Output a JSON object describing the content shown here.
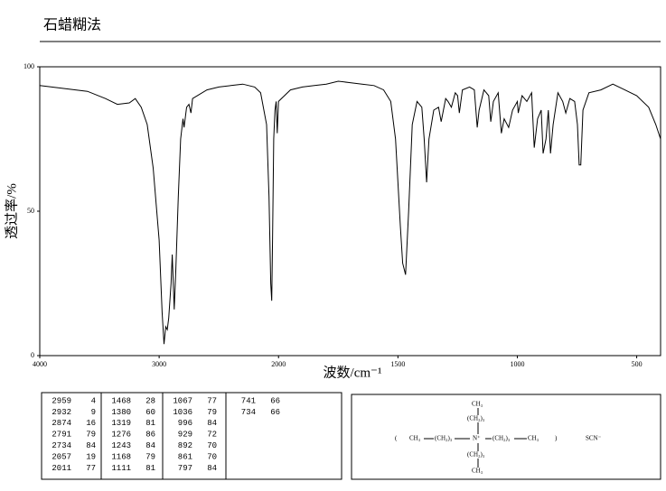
{
  "chart_data": {
    "type": "line",
    "title": "石蜡糊法",
    "xlabel": "波数/cm⁻¹",
    "ylabel": "透过率/%",
    "xlim": [
      4000,
      400
    ],
    "x_scale_break": 2000,
    "xticks": [
      4000,
      3000,
      2000,
      1500,
      1000,
      500
    ],
    "ylim": [
      0,
      100
    ],
    "yticks": [
      0,
      50,
      100
    ],
    "color": "#000000",
    "x": [
      4000,
      3800,
      3600,
      3450,
      3350,
      3250,
      3200,
      3150,
      3100,
      3050,
      3000,
      2975,
      2959,
      2945,
      2932,
      2920,
      2900,
      2890,
      2874,
      2860,
      2840,
      2820,
      2800,
      2791,
      2770,
      2750,
      2734,
      2720,
      2600,
      2500,
      2400,
      2300,
      2200,
      2150,
      2100,
      2080,
      2065,
      2057,
      2050,
      2040,
      2030,
      2020,
      2011,
      2000,
      1950,
      1900,
      1850,
      1800,
      1750,
      1700,
      1650,
      1600,
      1560,
      1530,
      1510,
      1490,
      1480,
      1468,
      1455,
      1440,
      1420,
      1400,
      1390,
      1380,
      1370,
      1350,
      1330,
      1319,
      1300,
      1290,
      1276,
      1260,
      1250,
      1243,
      1230,
      1200,
      1180,
      1168,
      1160,
      1140,
      1120,
      1111,
      1100,
      1080,
      1067,
      1055,
      1036,
      1020,
      1000,
      996,
      980,
      960,
      940,
      929,
      915,
      900,
      892,
      880,
      870,
      861,
      850,
      830,
      810,
      797,
      780,
      760,
      748,
      741,
      734,
      725,
      700,
      650,
      600,
      550,
      500,
      450,
      420,
      400
    ],
    "values": [
      93.5,
      92.5,
      91.5,
      89,
      87,
      87.5,
      89,
      86,
      80,
      65,
      40,
      15,
      4,
      10,
      9,
      13,
      25,
      35,
      16,
      30,
      55,
      75,
      82,
      79,
      86,
      87,
      84,
      89,
      92,
      93,
      93.5,
      94,
      93,
      91,
      80,
      55,
      25,
      19,
      40,
      75,
      85,
      88,
      77,
      88,
      92,
      93,
      93.5,
      94,
      95,
      94.5,
      94,
      93.5,
      92,
      88,
      75,
      45,
      32,
      28,
      50,
      80,
      88,
      86,
      75,
      60,
      75,
      85,
      86,
      81,
      89,
      88,
      86,
      91,
      90,
      84,
      92,
      93,
      92,
      79,
      85,
      92,
      90,
      81,
      88,
      91,
      77,
      82,
      79,
      85,
      88,
      84,
      90,
      88,
      91,
      72,
      82,
      85,
      70,
      75,
      85,
      70,
      80,
      91,
      88,
      84,
      89,
      88,
      80,
      66,
      66,
      85,
      91,
      92,
      94,
      92,
      90,
      86,
      80,
      75
    ]
  },
  "peak_table": {
    "columns": [
      [
        [
          2959,
          4
        ],
        [
          2932,
          9
        ],
        [
          2874,
          16
        ],
        [
          2791,
          79
        ],
        [
          2734,
          84
        ],
        [
          2057,
          19
        ],
        [
          2011,
          77
        ]
      ],
      [
        [
          1468,
          28
        ],
        [
          1380,
          60
        ],
        [
          1319,
          81
        ],
        [
          1276,
          86
        ],
        [
          1243,
          84
        ],
        [
          1168,
          79
        ],
        [
          1111,
          81
        ]
      ],
      [
        [
          1067,
          77
        ],
        [
          1036,
          79
        ],
        [
          996,
          84
        ],
        [
          929,
          72
        ],
        [
          892,
          70
        ],
        [
          861,
          70
        ],
        [
          797,
          84
        ]
      ],
      [
        [
          741,
          66
        ],
        [
          734,
          66
        ]
      ]
    ]
  },
  "structure": {
    "top_ch3": "CH₃",
    "top_chain": "(CH₂)₃",
    "open": "(",
    "left_ch3": "CH₃",
    "left_chain": "(CH₂)₃",
    "nitrogen": "N⁺",
    "right_chain": "(CH₂)₃",
    "right_ch3": "CH₃",
    "close": ")",
    "anion": "SCN⁻",
    "bottom_chain": "(CH₂)₃",
    "bottom_ch3": "CH₃"
  }
}
